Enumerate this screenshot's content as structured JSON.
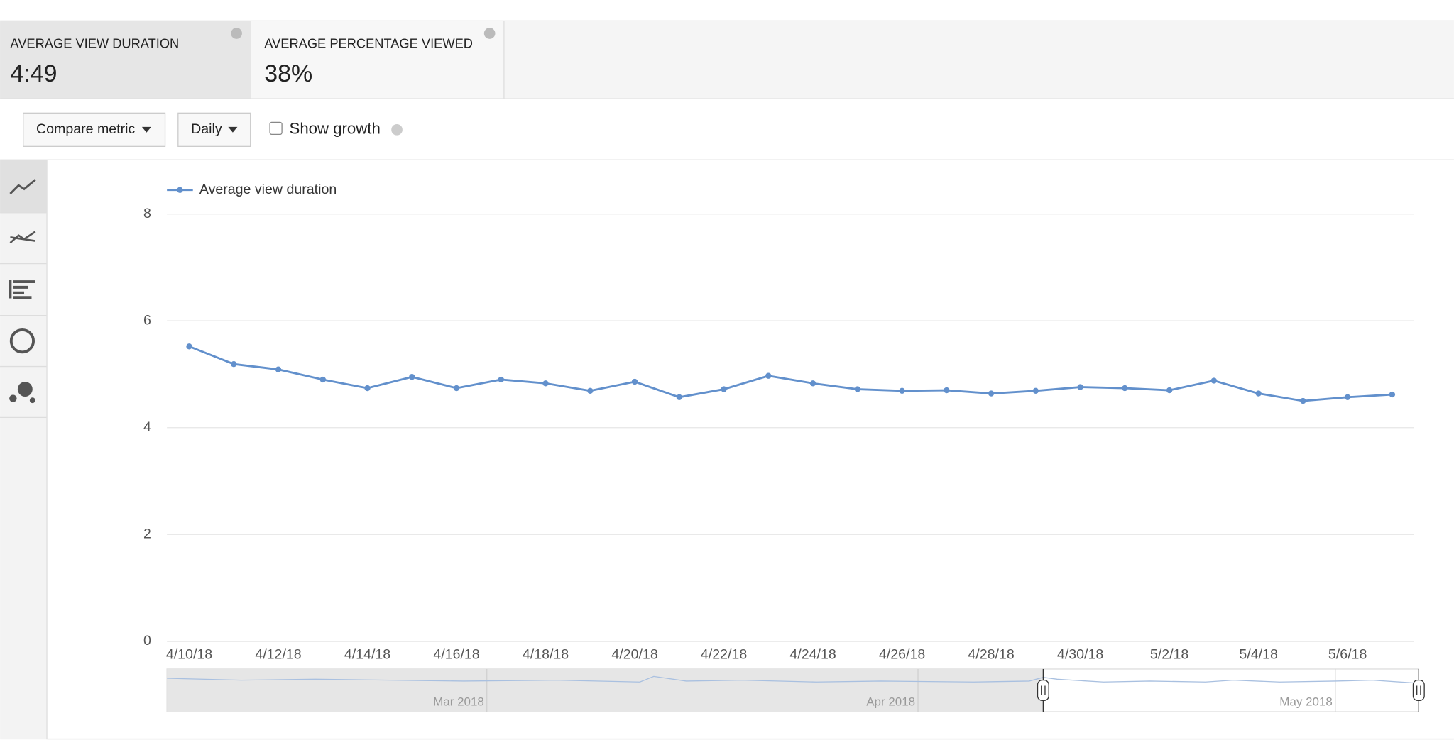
{
  "metrics": [
    {
      "label": "AVERAGE VIEW DURATION",
      "value": "4:49"
    },
    {
      "label": "AVERAGE PERCENTAGE VIEWED",
      "value": "38%"
    }
  ],
  "controls": {
    "compare": "Compare metric",
    "interval": "Daily",
    "growth": "Show growth"
  },
  "navigator": {
    "labels": [
      "Mar 2018",
      "Apr 2018",
      "May 2018"
    ]
  },
  "chart_data": {
    "type": "line",
    "categories": [
      "4/10/18",
      null,
      "4/12/18",
      null,
      "4/14/18",
      null,
      "4/16/18",
      null,
      "4/18/18",
      null,
      "4/20/18",
      null,
      "4/22/18",
      null,
      "4/24/18",
      null,
      "4/26/18",
      null,
      "4/28/18",
      null,
      "4/30/18",
      null,
      "5/2/18",
      null,
      "5/4/18",
      null,
      "5/6/18",
      null
    ],
    "series": [
      {
        "name": "Average view duration",
        "color": "#6290cc",
        "values": [
          5.52,
          5.19,
          5.09,
          4.9,
          4.74,
          4.95,
          4.74,
          4.9,
          4.83,
          4.69,
          4.86,
          4.57,
          4.72,
          4.97,
          4.83,
          4.72,
          4.69,
          4.7,
          4.64,
          4.69,
          4.76,
          4.74,
          4.7,
          4.88,
          4.64,
          4.5,
          4.57,
          4.62
        ]
      }
    ],
    "ylim": [
      0,
      8
    ],
    "yticks": [
      0,
      2,
      4,
      6,
      8
    ],
    "grid": true,
    "legend": "top-left"
  }
}
